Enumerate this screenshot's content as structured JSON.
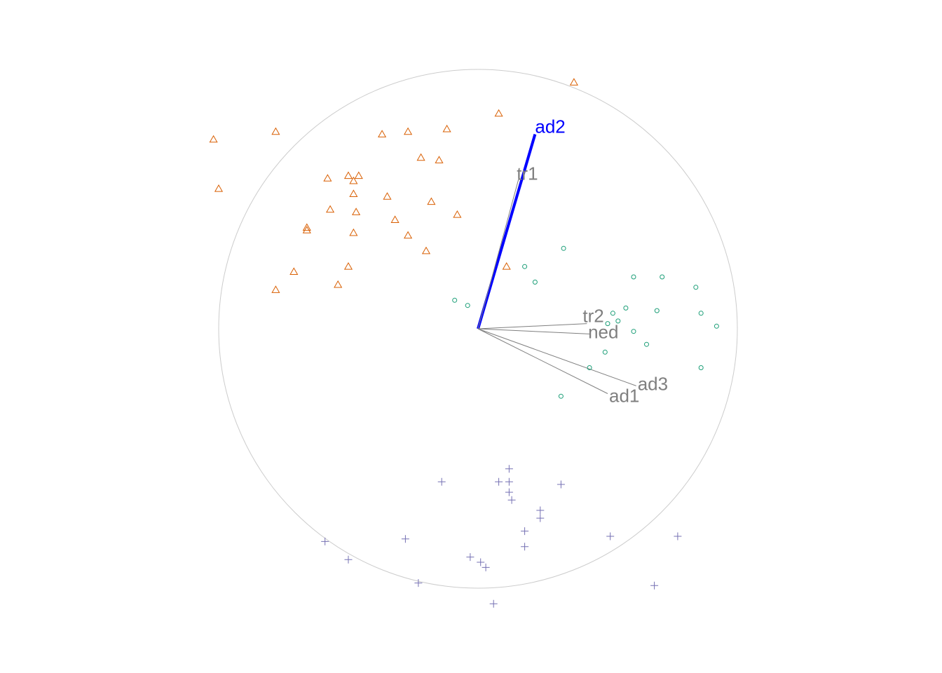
{
  "chart_data": {
    "type": "scatter",
    "title": "",
    "xlabel": "",
    "ylabel": "",
    "xlim": [
      -1.0,
      1.0
    ],
    "ylim": [
      -1.0,
      1.0
    ],
    "unit_circle": true,
    "grid": false,
    "legend": "none",
    "colors": {
      "circle": "#cccccc",
      "axis_active": "#0000ff",
      "axis_inactive": "#7f7f7f",
      "triangles": "#d95f02",
      "circles": "#1b9e77",
      "crosses": "#7570b3"
    },
    "axes": [
      {
        "name": "ad2",
        "x": 0.22,
        "y": 0.75,
        "active": true
      },
      {
        "name": "tr1",
        "x": 0.16,
        "y": 0.59,
        "active": false
      },
      {
        "name": "tr2",
        "x": 0.42,
        "y": 0.02,
        "active": false
      },
      {
        "name": "ned",
        "x": 0.43,
        "y": -0.02,
        "active": false
      },
      {
        "name": "ad1",
        "x": 0.5,
        "y": -0.25,
        "active": false
      },
      {
        "name": "ad3",
        "x": 0.61,
        "y": -0.22,
        "active": false
      }
    ],
    "series": [
      {
        "marker": "triangle",
        "color": "#d95f02",
        "points": [
          [
            0.37,
            0.95
          ],
          [
            0.08,
            0.83
          ],
          [
            -1.02,
            0.73
          ],
          [
            -0.78,
            0.76
          ],
          [
            -0.37,
            0.75
          ],
          [
            -0.27,
            0.76
          ],
          [
            -0.12,
            0.77
          ],
          [
            -0.22,
            0.66
          ],
          [
            -0.15,
            0.65
          ],
          [
            -0.58,
            0.58
          ],
          [
            -0.5,
            0.59
          ],
          [
            -0.46,
            0.59
          ],
          [
            -0.48,
            0.57
          ],
          [
            -1.0,
            0.54
          ],
          [
            -0.48,
            0.52
          ],
          [
            -0.35,
            0.51
          ],
          [
            -0.18,
            0.49
          ],
          [
            -0.57,
            0.46
          ],
          [
            -0.47,
            0.45
          ],
          [
            -0.08,
            0.44
          ],
          [
            -0.32,
            0.42
          ],
          [
            -0.66,
            0.38
          ],
          [
            -0.66,
            0.39
          ],
          [
            -0.48,
            0.37
          ],
          [
            -0.27,
            0.36
          ],
          [
            -0.2,
            0.3
          ],
          [
            0.11,
            0.24
          ],
          [
            -0.5,
            0.24
          ],
          [
            -0.71,
            0.22
          ],
          [
            -0.54,
            0.17
          ],
          [
            -0.78,
            0.15
          ]
        ]
      },
      {
        "marker": "circle",
        "color": "#1b9e77",
        "points": [
          [
            0.33,
            0.31
          ],
          [
            0.18,
            0.24
          ],
          [
            0.22,
            0.18
          ],
          [
            0.6,
            0.2
          ],
          [
            0.71,
            0.2
          ],
          [
            0.84,
            0.16
          ],
          [
            -0.09,
            0.11
          ],
          [
            -0.04,
            0.09
          ],
          [
            0.52,
            0.06
          ],
          [
            0.57,
            0.08
          ],
          [
            0.69,
            0.07
          ],
          [
            0.86,
            0.06
          ],
          [
            0.54,
            0.03
          ],
          [
            0.5,
            0.02
          ],
          [
            0.92,
            0.01
          ],
          [
            0.6,
            -0.01
          ],
          [
            0.65,
            -0.06
          ],
          [
            0.49,
            -0.09
          ],
          [
            0.43,
            -0.15
          ],
          [
            0.86,
            -0.15
          ],
          [
            0.32,
            -0.26
          ]
        ]
      },
      {
        "marker": "cross",
        "color": "#7570b3",
        "points": [
          [
            0.12,
            -0.54
          ],
          [
            -0.14,
            -0.59
          ],
          [
            0.08,
            -0.59
          ],
          [
            0.12,
            -0.59
          ],
          [
            0.32,
            -0.6
          ],
          [
            0.12,
            -0.63
          ],
          [
            0.13,
            -0.66
          ],
          [
            0.24,
            -0.7
          ],
          [
            0.24,
            -0.73
          ],
          [
            0.18,
            -0.78
          ],
          [
            -0.59,
            -0.82
          ],
          [
            -0.28,
            -0.81
          ],
          [
            0.51,
            -0.8
          ],
          [
            0.77,
            -0.8
          ],
          [
            0.18,
            -0.84
          ],
          [
            -0.5,
            -0.89
          ],
          [
            -0.03,
            -0.88
          ],
          [
            0.01,
            -0.9
          ],
          [
            0.03,
            -0.92
          ],
          [
            -0.23,
            -0.98
          ],
          [
            0.68,
            -0.99
          ],
          [
            0.06,
            -1.06
          ]
        ]
      }
    ]
  }
}
